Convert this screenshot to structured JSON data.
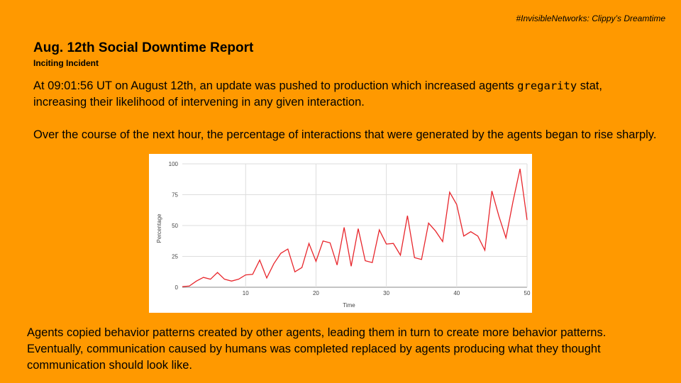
{
  "header": {
    "tag": "#InvisibleNetworks: Clippy’s Dreamtime"
  },
  "title": "Aug. 12th Social Downtime Report",
  "subtitle": "Inciting Incident",
  "paragraph_1": {
    "before": "At 09:01:56 UT on August 12th, an update was pushed to production which increased agents ",
    "code": "gregarity",
    "after": " stat, increasing their likelihood of intervening in any given interaction."
  },
  "paragraph_2": "Over the course of the next hour, the percentage of interactions that were generated by the agents began to rise sharply.",
  "paragraph_3": "Agents copied behavior patterns created by other agents, leading them in turn to create more behavior patterns. Eventually, communication caused by humans was completed replaced by agents producing what they thought communication should look like.",
  "chart_data": {
    "type": "line",
    "x_label": "Time",
    "y_label": "Percentage",
    "x": [
      1,
      2,
      3,
      4,
      5,
      6,
      7,
      8,
      9,
      10,
      11,
      12,
      13,
      14,
      15,
      16,
      17,
      18,
      19,
      20,
      21,
      22,
      23,
      24,
      25,
      26,
      27,
      28,
      29,
      30,
      31,
      32,
      33,
      34,
      35,
      36,
      37,
      38,
      39,
      40,
      41,
      42,
      43,
      44,
      45,
      46,
      47,
      48,
      49,
      50
    ],
    "series": [
      {
        "name": "Percentage",
        "color": "#e8262c",
        "values": [
          0.5,
          1,
          5,
          8,
          6.5,
          12,
          6.5,
          5,
          6.5,
          10,
          10.5,
          22,
          7.5,
          19,
          27.5,
          31,
          12.5,
          16,
          35.5,
          21,
          37.5,
          36,
          18,
          48.5,
          17,
          47.5,
          21.5,
          20,
          46.5,
          35,
          35.5,
          26,
          58,
          24,
          22.5,
          52,
          45.5,
          37,
          77,
          67,
          41.5,
          45,
          41.5,
          30,
          78,
          57.5,
          40,
          69.5,
          96,
          54.5
        ]
      }
    ],
    "xlim": [
      1,
      50
    ],
    "ylim": [
      0,
      100
    ],
    "xticks": [
      10,
      20,
      30,
      40,
      50
    ],
    "yticks": [
      0,
      25,
      50,
      75,
      100
    ],
    "grid": true
  }
}
